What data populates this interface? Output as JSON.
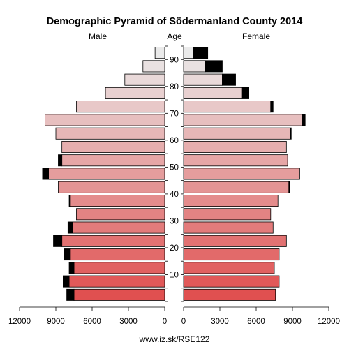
{
  "chart_data": {
    "type": "bar",
    "title": "Demographic Pyramid of Södermanland County 2014",
    "left_label": "Male",
    "center_label": "Age",
    "right_label": "Female",
    "source": "www.iz.sk/RSE122",
    "x_ticks_left": [
      "12000",
      "9000",
      "6000",
      "3000",
      "0"
    ],
    "x_ticks_right": [
      "0",
      "3000",
      "6000",
      "9000",
      "12000"
    ],
    "x_tick_values": [
      12000,
      9000,
      6000,
      3000,
      0
    ],
    "xlim": [
      0,
      12000
    ],
    "age_tick_labels": [
      "10",
      "20",
      "30",
      "40",
      "50",
      "60",
      "70",
      "80",
      "90"
    ],
    "age_groups": [
      "0-4",
      "5-9",
      "10-14",
      "15-19",
      "20-24",
      "25-29",
      "30-34",
      "35-39",
      "40-44",
      "45-49",
      "50-54",
      "55-59",
      "60-64",
      "65-69",
      "70-74",
      "75-79",
      "80-84",
      "85-89",
      "90+"
    ],
    "series": [
      {
        "name": "Male",
        "side": "left",
        "values": [
          7500,
          7900,
          7500,
          7800,
          8500,
          7600,
          7300,
          7800,
          8800,
          9600,
          8500,
          8500,
          9000,
          9900,
          7300,
          4900,
          3300,
          1800,
          800
        ],
        "excess": [
          600,
          500,
          400,
          500,
          700,
          400,
          0,
          100,
          0,
          500,
          300,
          0,
          0,
          0,
          0,
          0,
          0,
          0,
          0
        ]
      },
      {
        "name": "Female",
        "side": "right",
        "values": [
          7600,
          7900,
          7500,
          7900,
          8500,
          7400,
          7200,
          7800,
          8700,
          9600,
          8600,
          8500,
          8800,
          9800,
          7200,
          4800,
          3200,
          1800,
          800
        ],
        "excess": [
          0,
          0,
          0,
          0,
          0,
          0,
          0,
          0,
          100,
          0,
          0,
          0,
          100,
          250,
          200,
          600,
          1100,
          1400,
          1200
        ]
      }
    ],
    "colors": {
      "bar_young": "#e05050",
      "bar_old": "#eaeaea",
      "excess": "#000000",
      "outline": "#000000"
    }
  }
}
